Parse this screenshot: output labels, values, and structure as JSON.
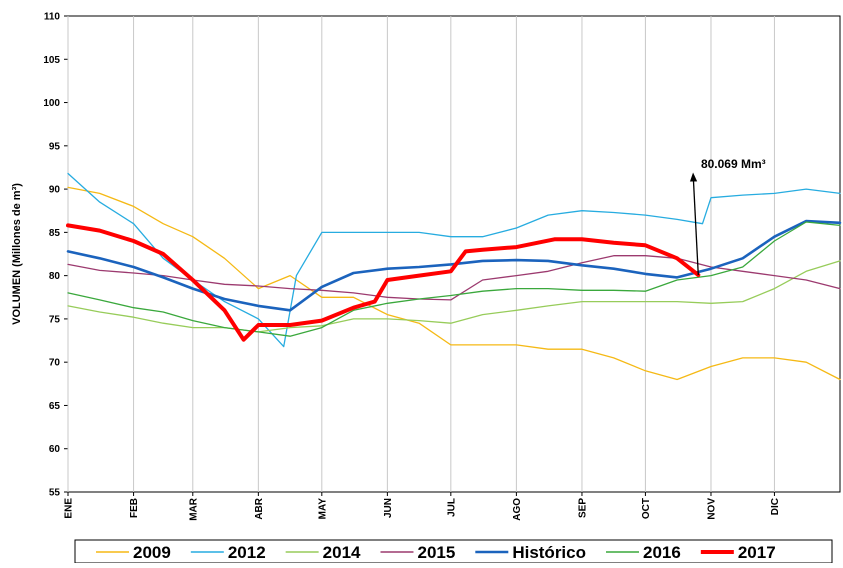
{
  "chart_data": {
    "type": "line",
    "y_label": "VOLUMEN (Millones de m³)",
    "ylim": [
      55,
      110
    ],
    "yticks": [
      55,
      60,
      65,
      70,
      75,
      80,
      85,
      90,
      95,
      100,
      105,
      110
    ],
    "xlim": [
      0,
      365
    ],
    "xticks": [
      {
        "value": 0,
        "label": "ENE"
      },
      {
        "value": 31,
        "label": "FEB"
      },
      {
        "value": 59,
        "label": "MAR"
      },
      {
        "value": 90,
        "label": "ABR"
      },
      {
        "value": 120,
        "label": "MAY"
      },
      {
        "value": 151,
        "label": "JUN"
      },
      {
        "value": 181,
        "label": "JUL"
      },
      {
        "value": 212,
        "label": "AGO"
      },
      {
        "value": 243,
        "label": "SEP"
      },
      {
        "value": 273,
        "label": "OCT"
      },
      {
        "value": 304,
        "label": "NOV"
      },
      {
        "value": 334,
        "label": "DIC"
      }
    ],
    "grid": "x",
    "legend": "bottom",
    "annotation": "80.069 Mm³",
    "series": [
      {
        "name": "2009",
        "color": "#f5b915",
        "width": 1.3,
        "x": [
          0,
          15,
          31,
          45,
          59,
          74,
          90,
          105,
          120,
          135,
          151,
          166,
          181,
          196,
          212,
          227,
          243,
          258,
          273,
          288,
          304,
          319,
          334,
          349,
          365
        ],
        "values": [
          90.2,
          89.5,
          88,
          86,
          84.5,
          82,
          78.5,
          80,
          77.5,
          77.5,
          75.5,
          74.5,
          72,
          72,
          72,
          71.5,
          71.5,
          70.5,
          69,
          68,
          69.5,
          70.5,
          70.5,
          70,
          68
        ]
      },
      {
        "name": "2012",
        "color": "#27ace0",
        "width": 1.3,
        "x": [
          0,
          15,
          31,
          45,
          59,
          74,
          90,
          102,
          108,
          120,
          135,
          151,
          166,
          181,
          196,
          212,
          227,
          243,
          258,
          273,
          288,
          300,
          304,
          319,
          334,
          349,
          365
        ],
        "values": [
          91.8,
          88.5,
          86,
          82,
          79.5,
          77,
          75,
          71.8,
          80,
          85,
          85,
          85,
          85,
          84.5,
          84.5,
          85.5,
          87,
          87.5,
          87.3,
          87,
          86.5,
          86,
          89,
          89.3,
          89.5,
          90,
          89.5
        ]
      },
      {
        "name": "2014",
        "color": "#97cc5a",
        "width": 1.3,
        "x": [
          0,
          15,
          31,
          45,
          59,
          74,
          90,
          105,
          120,
          135,
          151,
          166,
          181,
          196,
          212,
          227,
          243,
          258,
          273,
          288,
          304,
          319,
          334,
          349,
          365
        ],
        "values": [
          76.5,
          75.8,
          75.2,
          74.5,
          74,
          74,
          73.5,
          74,
          74.2,
          75,
          75,
          74.8,
          74.5,
          75.5,
          76,
          76.5,
          77,
          77,
          77,
          77,
          76.8,
          77,
          78.5,
          80.5,
          81.7
        ]
      },
      {
        "name": "2015",
        "color": "#9c3a6f",
        "width": 1.3,
        "x": [
          0,
          15,
          31,
          45,
          59,
          74,
          90,
          105,
          120,
          135,
          151,
          166,
          181,
          196,
          212,
          227,
          243,
          258,
          273,
          288,
          304,
          319,
          334,
          349,
          365
        ],
        "values": [
          81.3,
          80.6,
          80.3,
          80,
          79.5,
          79,
          78.8,
          78.5,
          78.3,
          78,
          77.5,
          77.3,
          77.2,
          79.5,
          80,
          80.5,
          81.5,
          82.3,
          82.3,
          82,
          81,
          80.5,
          80,
          79.5,
          78.5
        ]
      },
      {
        "name": "Histórico",
        "color": "#1b63bd",
        "width": 2.6,
        "x": [
          0,
          15,
          31,
          45,
          59,
          74,
          90,
          105,
          120,
          135,
          151,
          166,
          181,
          196,
          212,
          227,
          243,
          258,
          273,
          288,
          304,
          319,
          334,
          349,
          365
        ],
        "values": [
          82.8,
          82,
          81,
          79.8,
          78.5,
          77.3,
          76.5,
          76,
          78.7,
          80.3,
          80.8,
          81,
          81.3,
          81.7,
          81.8,
          81.7,
          81.2,
          80.8,
          80.2,
          79.8,
          80.8,
          82,
          84.5,
          86.3,
          86.1
        ]
      },
      {
        "name": "2016",
        "color": "#3aa83c",
        "width": 1.3,
        "x": [
          0,
          15,
          31,
          45,
          59,
          74,
          90,
          105,
          120,
          135,
          151,
          166,
          181,
          196,
          212,
          227,
          243,
          258,
          273,
          288,
          304,
          319,
          334,
          349,
          365
        ],
        "values": [
          78,
          77.2,
          76.3,
          75.8,
          74.8,
          74,
          73.5,
          73,
          74,
          76,
          76.8,
          77.3,
          77.7,
          78.2,
          78.5,
          78.5,
          78.3,
          78.3,
          78.2,
          79.5,
          80,
          81,
          84,
          86.2,
          85.8
        ]
      },
      {
        "name": "2017",
        "color": "#ff0000",
        "width": 4,
        "x": [
          0,
          15,
          31,
          45,
          59,
          74,
          83,
          90,
          105,
          120,
          135,
          145,
          151,
          166,
          181,
          188,
          196,
          212,
          230,
          243,
          258,
          273,
          288,
          298
        ],
        "values": [
          85.8,
          85.2,
          84,
          82.5,
          79.5,
          76,
          72.6,
          74.3,
          74.3,
          74.8,
          76.3,
          77,
          79.5,
          80,
          80.5,
          82.8,
          83,
          83.3,
          84.2,
          84.2,
          83.8,
          83.5,
          82,
          80.069
        ]
      }
    ]
  }
}
